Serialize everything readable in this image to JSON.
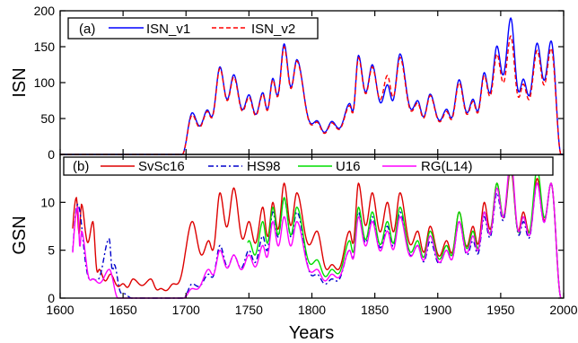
{
  "chart_data": [
    {
      "panel": "(a)",
      "type": "line",
      "ylabel": "ISN",
      "xlim": [
        1600,
        2000
      ],
      "ylim": [
        0,
        200
      ],
      "yticks": [
        0,
        50,
        100,
        150,
        200
      ],
      "legend": "top-left",
      "series": [
        {
          "name": "ISN_v1",
          "color": "#0000ff",
          "dash": "solid",
          "peaks": [
            [
              1705,
              58
            ],
            [
              1717,
              62
            ],
            [
              1727,
              122
            ],
            [
              1738,
              111
            ],
            [
              1750,
              83
            ],
            [
              1761,
              86
            ],
            [
              1769,
              106
            ],
            [
              1778,
              154
            ],
            [
              1788,
              132
            ],
            [
              1804,
              47
            ],
            [
              1816,
              46
            ],
            [
              1830,
              71
            ],
            [
              1837,
              138
            ],
            [
              1848,
              125
            ],
            [
              1860,
              97
            ],
            [
              1870,
              140
            ],
            [
              1884,
              75
            ],
            [
              1894,
              84
            ],
            [
              1907,
              63
            ],
            [
              1917,
              104
            ],
            [
              1928,
              77
            ],
            [
              1937,
              114
            ],
            [
              1947,
              151
            ],
            [
              1958,
              190
            ],
            [
              1968,
              105
            ],
            [
              1979,
              155
            ],
            [
              1990,
              158
            ]
          ]
        },
        {
          "name": "ISN_v2",
          "color": "#ff0000",
          "dash": "dashed",
          "peaks": [
            [
              1705,
              55
            ],
            [
              1717,
              60
            ],
            [
              1727,
              120
            ],
            [
              1738,
              108
            ],
            [
              1750,
              80
            ],
            [
              1761,
              84
            ],
            [
              1769,
              104
            ],
            [
              1778,
              150
            ],
            [
              1788,
              130
            ],
            [
              1804,
              45
            ],
            [
              1816,
              44
            ],
            [
              1830,
              68
            ],
            [
              1837,
              135
            ],
            [
              1848,
              122
            ],
            [
              1860,
              110
            ],
            [
              1870,
              135
            ],
            [
              1884,
              72
            ],
            [
              1894,
              82
            ],
            [
              1907,
              60
            ],
            [
              1917,
              100
            ],
            [
              1928,
              74
            ],
            [
              1937,
              110
            ],
            [
              1947,
              140
            ],
            [
              1958,
              165
            ],
            [
              1968,
              98
            ],
            [
              1979,
              145
            ],
            [
              1990,
              148
            ]
          ]
        }
      ]
    },
    {
      "panel": "(b)",
      "type": "line",
      "xlabel": "Years",
      "ylabel": "GSN",
      "xlim": [
        1600,
        2000
      ],
      "ylim": [
        0,
        15
      ],
      "xticks": [
        1600,
        1650,
        1700,
        1750,
        1800,
        1850,
        1900,
        1950,
        2000
      ],
      "yticks": [
        0,
        5,
        10
      ],
      "legend": "top",
      "series": [
        {
          "name": "SvSc16",
          "color": "#dd0000",
          "dash": "solid",
          "x_range": [
            1610,
            1998
          ],
          "peaks": [
            [
              1613,
              10.5
            ],
            [
              1617,
              9.8
            ],
            [
              1626,
              8
            ],
            [
              1631,
              3
            ],
            [
              1640,
              2.5
            ],
            [
              1650,
              1.5
            ],
            [
              1658,
              2
            ],
            [
              1672,
              2
            ],
            [
              1680,
              1
            ],
            [
              1690,
              1.5
            ],
            [
              1705,
              8
            ],
            [
              1718,
              6
            ],
            [
              1727,
              11
            ],
            [
              1738,
              11.5
            ],
            [
              1750,
              8
            ],
            [
              1761,
              9.5
            ],
            [
              1769,
              10
            ],
            [
              1778,
              12
            ],
            [
              1788,
              11
            ],
            [
              1804,
              7
            ],
            [
              1816,
              3.5
            ],
            [
              1830,
              7
            ],
            [
              1837,
              12
            ],
            [
              1848,
              11
            ],
            [
              1860,
              10
            ],
            [
              1870,
              11
            ],
            [
              1884,
              7
            ],
            [
              1894,
              7.5
            ],
            [
              1907,
              6
            ],
            [
              1917,
              9
            ],
            [
              1928,
              7.5
            ],
            [
              1937,
              10
            ],
            [
              1947,
              12
            ],
            [
              1958,
              13.5
            ],
            [
              1968,
              9
            ],
            [
              1979,
              12.5
            ],
            [
              1990,
              12
            ]
          ]
        },
        {
          "name": "HS98",
          "color": "#0000cc",
          "dash": "dashdot",
          "x_range": [
            1610,
            1998
          ],
          "peaks": [
            [
              1614,
              9.8
            ],
            [
              1626,
              2
            ],
            [
              1639,
              6.2
            ],
            [
              1643,
              3.5
            ],
            [
              1650,
              0.5
            ],
            [
              1705,
              1.5
            ],
            [
              1718,
              2.5
            ],
            [
              1727,
              5.5
            ],
            [
              1738,
              4.5
            ],
            [
              1750,
              5
            ],
            [
              1761,
              6.5
            ],
            [
              1769,
              9
            ],
            [
              1778,
              10.5
            ],
            [
              1788,
              9
            ],
            [
              1804,
              2.5
            ],
            [
              1816,
              2
            ],
            [
              1830,
              5
            ],
            [
              1837,
              9
            ],
            [
              1848,
              8.5
            ],
            [
              1860,
              7.5
            ],
            [
              1870,
              9
            ],
            [
              1884,
              5.5
            ],
            [
              1894,
              6
            ],
            [
              1907,
              5
            ],
            [
              1917,
              8
            ],
            [
              1928,
              6
            ],
            [
              1937,
              8.5
            ],
            [
              1947,
              11
            ],
            [
              1958,
              14
            ],
            [
              1968,
              8
            ],
            [
              1979,
              12
            ],
            [
              1990,
              12
            ]
          ]
        },
        {
          "name": "U16",
          "color": "#00dd00",
          "dash": "solid",
          "x_range": [
            1749,
            1998
          ],
          "peaks": [
            [
              1750,
              6
            ],
            [
              1761,
              8
            ],
            [
              1769,
              9.5
            ],
            [
              1778,
              10.5
            ],
            [
              1788,
              9.5
            ],
            [
              1804,
              4
            ],
            [
              1816,
              3
            ],
            [
              1830,
              6
            ],
            [
              1837,
              9.5
            ],
            [
              1848,
              9
            ],
            [
              1860,
              8
            ],
            [
              1870,
              9.5
            ],
            [
              1884,
              6
            ],
            [
              1894,
              7
            ],
            [
              1907,
              5.5
            ],
            [
              1917,
              9
            ],
            [
              1928,
              7
            ],
            [
              1937,
              9
            ],
            [
              1947,
              12
            ],
            [
              1958,
              14
            ],
            [
              1968,
              8.5
            ],
            [
              1979,
              13.5
            ],
            [
              1990,
              12
            ]
          ]
        },
        {
          "name": "RG(L14)",
          "color": "#ff00ff",
          "dash": "solid",
          "x_range": [
            1610,
            1998
          ],
          "peaks": [
            [
              1614,
              9.5
            ],
            [
              1617,
              7
            ],
            [
              1626,
              2
            ],
            [
              1639,
              3
            ],
            [
              1705,
              1
            ],
            [
              1718,
              3
            ],
            [
              1727,
              5
            ],
            [
              1738,
              4.5
            ],
            [
              1750,
              4.5
            ],
            [
              1761,
              5.5
            ],
            [
              1769,
              8
            ],
            [
              1778,
              8.5
            ],
            [
              1788,
              8
            ],
            [
              1804,
              3
            ],
            [
              1816,
              2.5
            ],
            [
              1830,
              5
            ],
            [
              1837,
              8.5
            ],
            [
              1848,
              8
            ],
            [
              1860,
              7
            ],
            [
              1870,
              8.5
            ],
            [
              1884,
              5.5
            ],
            [
              1894,
              6.5
            ],
            [
              1907,
              5
            ],
            [
              1917,
              8
            ],
            [
              1928,
              6.5
            ],
            [
              1937,
              9
            ],
            [
              1947,
              11.5
            ],
            [
              1958,
              14.5
            ],
            [
              1968,
              8.5
            ],
            [
              1979,
              12
            ],
            [
              1990,
              12
            ]
          ]
        }
      ]
    }
  ],
  "texts": {
    "panel_a_label": "(a)",
    "panel_b_label": "(b)",
    "ylabel_a": "ISN",
    "ylabel_b": "GSN",
    "xlabel": "Years"
  }
}
